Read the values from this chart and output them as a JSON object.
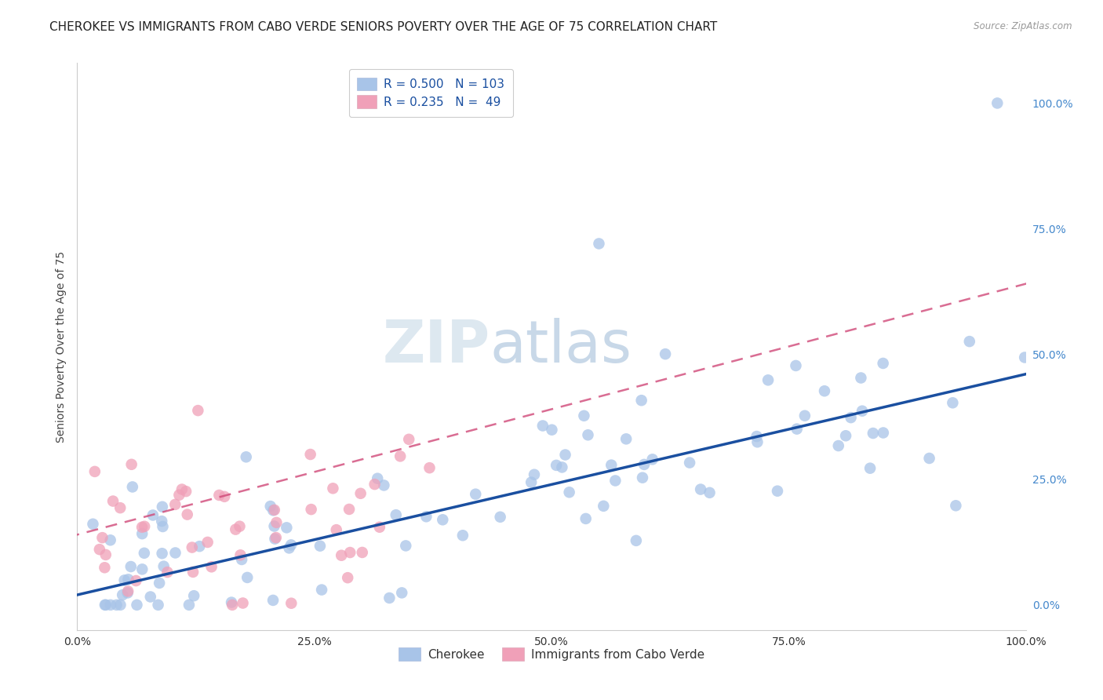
{
  "title": "CHEROKEE VS IMMIGRANTS FROM CABO VERDE SENIORS POVERTY OVER THE AGE OF 75 CORRELATION CHART",
  "source": "Source: ZipAtlas.com",
  "ylabel": "Seniors Poverty Over the Age of 75",
  "xlim": [
    0,
    1.0
  ],
  "ylim": [
    -0.05,
    1.08
  ],
  "xtick_labels": [
    "0.0%",
    "25.0%",
    "50.0%",
    "75.0%",
    "100.0%"
  ],
  "xtick_positions": [
    0.0,
    0.25,
    0.5,
    0.75,
    1.0
  ],
  "ytick_labels_right": [
    "100.0%",
    "75.0%",
    "50.0%",
    "25.0%",
    "0.0%"
  ],
  "ytick_positions": [
    1.0,
    0.75,
    0.5,
    0.25,
    0.0
  ],
  "cherokee_R": 0.5,
  "cherokee_N": 103,
  "caboverde_R": 0.235,
  "caboverde_N": 49,
  "cherokee_color": "#a8c4e8",
  "cherokee_line_color": "#1a4fa0",
  "caboverde_color": "#f0a0b8",
  "caboverde_line_color": "#d04878",
  "watermark_zip_color": "#dde8f0",
  "watermark_atlas_color": "#c8d8e8",
  "background_color": "#ffffff",
  "grid_color": "#d8d8d8",
  "title_fontsize": 11,
  "axis_label_fontsize": 10,
  "tick_fontsize": 10,
  "right_tick_color": "#4488cc",
  "legend_fontsize": 11
}
